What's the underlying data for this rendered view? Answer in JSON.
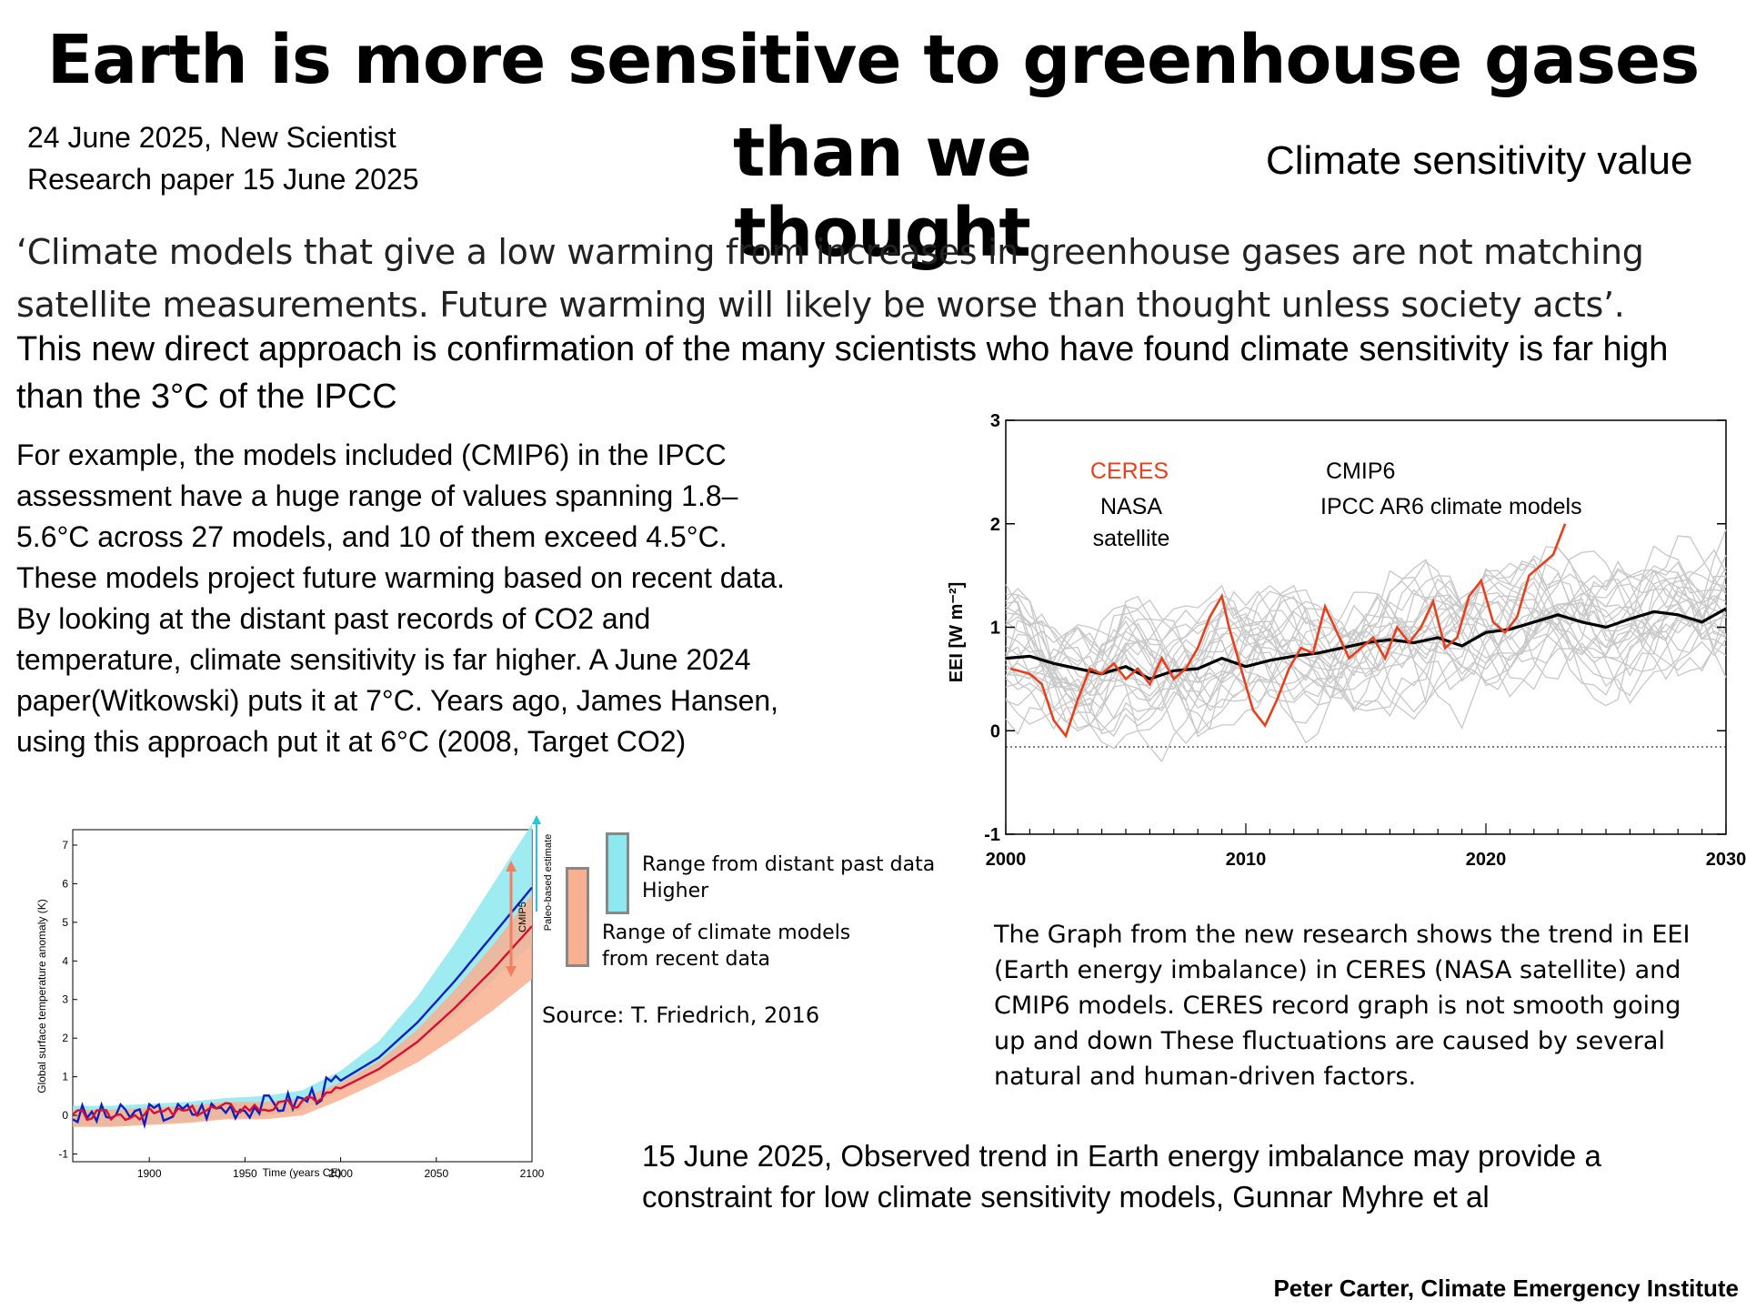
{
  "header": {
    "title_line1": "Earth is more sensitive to greenhouse gases",
    "title_line2": "than we thought",
    "source_line1": "24 June 2025, New Scientist",
    "source_line2": "Research paper 15 June 2025",
    "side_label": "Climate sensitivity value"
  },
  "quote": "‘Climate models that give a low warming from increases in greenhouse gases are not matching satellite measurements. Future warming will likely be worse than thought unless society acts’.",
  "confirmation": "This new direct approach is confirmation of the many scientists who have found climate sensitivity  is far high than the 3°C of the IPCC",
  "body": {
    "line1": "For example, the models included (CMIP6) in the IPCC",
    "line2": "assessment have a huge range  of values spanning 1.8–",
    "line3": "5.6°C across 27 models, and 10 of them exceed 4.5°C.",
    "line4": "These models project future warming based on recent data.",
    "line5": "By looking at the distant past records of CO2 and",
    "line6": "temperature, climate sensitivity is far higher. A June 2024",
    "line7": "paper(Witkowski) puts it at 7°C. Years ago, James Hansen,",
    "line8": "using this approach put it at 6°C (2008, Target CO2)"
  },
  "eei_chart": {
    "ylabel": "EEI [W m⁻²]",
    "annotations": {
      "ceres": "CERES",
      "nasa_line1": "NASA",
      "nasa_line2": "satellite",
      "cmip6": "CMIP6",
      "ipcc": "IPCC AR6 climate models"
    },
    "colors": {
      "ceres": "#e8401c",
      "cmip6_mean": "#000000",
      "models": "#c8c8c8"
    },
    "caption": {
      "line1": "The Graph from the new research shows the trend in EEI",
      "line2": "(Earth energy imbalance) in CERES (NASA satellite) and",
      "line3": "CMIP6 models. CERES record graph is not smooth going",
      "line4": "up and down These fluctuations are caused by several",
      "line5": "natural and human-driven factors."
    }
  },
  "temp_chart": {
    "xlabel": "Time (years CE)",
    "ylabel": "Global surface temperature anomaly (K)",
    "side_labels": {
      "cmip5": "CMIP5",
      "paleo": "Paleo-based estimate"
    },
    "legend": {
      "paleo_line1": "Range from distant past data",
      "paleo_line2": "Higher",
      "models_line1": "Range of climate models",
      "models_line2": "from recent data"
    },
    "source": "Source: T. Friedrich, 2016",
    "colors": {
      "paleo_band": "#8ee8f0",
      "model_band": "#f8b090",
      "paleo_line": "#1020c0",
      "model_line": "#d81030"
    }
  },
  "reference": {
    "line1": "15 June 2025, Observed trend in Earth energy imbalance may provide a",
    "line2": "constraint for low climate sensitivity models, Gunnar Myhre et al"
  },
  "credit": "Peter Carter,  Climate Emergency Institute",
  "chart_data": [
    {
      "type": "line",
      "x_label": "",
      "y_label": "EEI [W m⁻²]",
      "xlim": [
        2000,
        2030
      ],
      "ylim": [
        -1,
        3
      ],
      "x_ticks": [
        2000,
        2010,
        2020,
        2030
      ],
      "y_ticks": [
        -1,
        0,
        1,
        2,
        3
      ],
      "grid": false,
      "series": [
        {
          "name": "CERES",
          "x": [
            2000.2,
            2001,
            2001.5,
            2002,
            2002.5,
            2003,
            2003.5,
            2004,
            2004.5,
            2005,
            2005.5,
            2006,
            2006.5,
            2007,
            2007.5,
            2008,
            2008.5,
            2009,
            2009.3,
            2009.8,
            2010.3,
            2010.8,
            2011.3,
            2011.8,
            2012.3,
            2012.8,
            2013.3,
            2013.8,
            2014.3,
            2014.8,
            2015.3,
            2015.8,
            2016.3,
            2016.8,
            2017.3,
            2017.8,
            2018.3,
            2018.8,
            2019.3,
            2019.8,
            2020.3,
            2020.8,
            2021.3,
            2021.8,
            2022.3,
            2022.8,
            2023.3
          ],
          "values": [
            0.6,
            0.55,
            0.45,
            0.1,
            -0.05,
            0.3,
            0.6,
            0.55,
            0.65,
            0.5,
            0.6,
            0.45,
            0.7,
            0.5,
            0.6,
            0.8,
            1.1,
            1.3,
            1.0,
            0.6,
            0.2,
            0.05,
            0.3,
            0.6,
            0.8,
            0.75,
            1.2,
            0.95,
            0.7,
            0.8,
            0.9,
            0.7,
            1.0,
            0.85,
            1.0,
            1.25,
            0.8,
            0.9,
            1.3,
            1.45,
            1.05,
            0.95,
            1.1,
            1.5,
            1.6,
            1.7,
            2.0
          ]
        },
        {
          "name": "CMIP6",
          "x": [
            2000,
            2001,
            2002,
            2003,
            2004,
            2005,
            2006,
            2007,
            2008,
            2009,
            2010,
            2011,
            2012,
            2013,
            2014,
            2015,
            2016,
            2017,
            2018,
            2019,
            2020,
            2021,
            2022,
            2023,
            2024,
            2025,
            2026,
            2027,
            2028,
            2029,
            2030
          ],
          "values": [
            0.7,
            0.72,
            0.65,
            0.6,
            0.55,
            0.62,
            0.5,
            0.58,
            0.6,
            0.7,
            0.62,
            0.68,
            0.72,
            0.75,
            0.8,
            0.85,
            0.88,
            0.85,
            0.9,
            0.82,
            0.95,
            0.98,
            1.05,
            1.12,
            1.05,
            1.0,
            1.08,
            1.15,
            1.12,
            1.05,
            1.18
          ]
        }
      ]
    },
    {
      "type": "area",
      "x_label": "Time (years CE)",
      "y_label": "Global surface temperature anomaly (K)",
      "xlim": [
        1860,
        2100
      ],
      "ylim": [
        -1.2,
        7.4
      ],
      "x_ticks": [
        1900,
        1950,
        2000,
        2050,
        2100
      ],
      "y_ticks": [
        -1,
        0,
        1,
        2,
        3,
        4,
        5,
        6,
        7
      ],
      "series": [
        {
          "name": "",
          "x": [
            1860,
            1880,
            1900,
            1920,
            1940,
            1960,
            1980,
            2000,
            2020,
            2040,
            2060,
            2080,
            2100
          ],
          "values": [
            0.0,
            0.0,
            0.05,
            0.1,
            0.2,
            0.25,
            0.4,
            0.9,
            1.5,
            2.4,
            3.5,
            4.7,
            5.9
          ]
        },
        {
          "name": "",
          "x": [
            1860,
            1880,
            1900,
            1920,
            1940,
            1960,
            1980,
            2000,
            2020,
            2040,
            2060,
            2080,
            2100
          ],
          "values": [
            0.0,
            0.0,
            0.05,
            0.1,
            0.2,
            0.2,
            0.3,
            0.7,
            1.2,
            1.9,
            2.8,
            3.8,
            4.9
          ]
        }
      ]
    }
  ]
}
